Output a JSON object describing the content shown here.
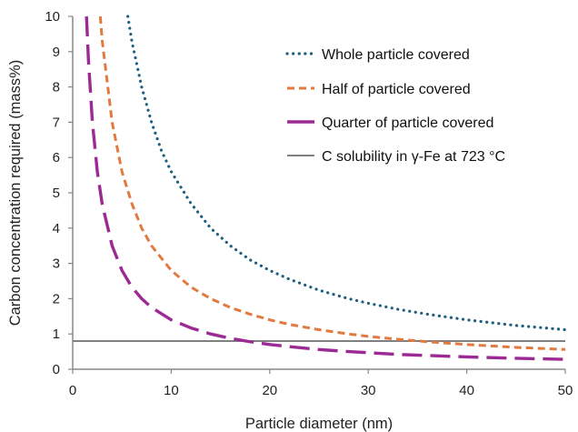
{
  "chart_data": {
    "type": "line",
    "title": "",
    "xlabel": "Particle diameter (nm)",
    "ylabel": "Carbon concentration required (mass%)",
    "xlim": [
      0,
      50
    ],
    "ylim": [
      0,
      10
    ],
    "x_ticks": [
      "0",
      "10",
      "20",
      "30",
      "40",
      "50"
    ],
    "y_ticks": [
      "0",
      "1",
      "2",
      "3",
      "4",
      "5",
      "6",
      "7",
      "8",
      "9",
      "10"
    ],
    "grid": false,
    "legend_position": "top-right",
    "series": [
      {
        "name": "Whole particle covered",
        "style": "dotted",
        "color": "#1f5f7f",
        "x": [
          5.6,
          6,
          7,
          8,
          9,
          10,
          12,
          14,
          16,
          18,
          20,
          22,
          25,
          28,
          30,
          33,
          36,
          40,
          45,
          50
        ],
        "y": [
          10.0,
          9.3,
          8.0,
          7.0,
          6.2,
          5.6,
          4.7,
          4.0,
          3.5,
          3.1,
          2.8,
          2.55,
          2.24,
          2.0,
          1.87,
          1.7,
          1.56,
          1.4,
          1.24,
          1.12
        ]
      },
      {
        "name": "Half of particle covered",
        "style": "dashed",
        "color": "#e27a3f",
        "x": [
          2.8,
          3,
          4,
          5,
          6,
          7,
          8,
          10,
          12,
          14,
          16,
          18,
          20,
          22,
          25,
          28,
          30,
          33,
          36,
          40,
          45,
          50
        ],
        "y": [
          10.0,
          9.3,
          7.0,
          5.6,
          4.7,
          4.0,
          3.5,
          2.8,
          2.33,
          2.0,
          1.75,
          1.56,
          1.4,
          1.27,
          1.12,
          1.0,
          0.93,
          0.85,
          0.78,
          0.7,
          0.62,
          0.56
        ]
      },
      {
        "name": "Quarter of particle covered",
        "style": "long-dashed",
        "color": "#9b2a94",
        "x": [
          1.4,
          1.6,
          2,
          2.5,
          3,
          4,
          5,
          6,
          7,
          8,
          10,
          12,
          14,
          16,
          18,
          20,
          22,
          25,
          28,
          30,
          33,
          36,
          40,
          45,
          50
        ],
        "y": [
          10.0,
          8.75,
          7.0,
          5.6,
          4.67,
          3.5,
          2.8,
          2.33,
          2.0,
          1.75,
          1.4,
          1.17,
          1.0,
          0.875,
          0.78,
          0.7,
          0.64,
          0.56,
          0.5,
          0.47,
          0.42,
          0.39,
          0.35,
          0.31,
          0.28
        ]
      },
      {
        "name": "C solubility in γ-Fe at 723 °C",
        "style": "solid",
        "color": "#808080",
        "x": [
          0,
          50
        ],
        "y": [
          0.8,
          0.8
        ]
      }
    ]
  }
}
